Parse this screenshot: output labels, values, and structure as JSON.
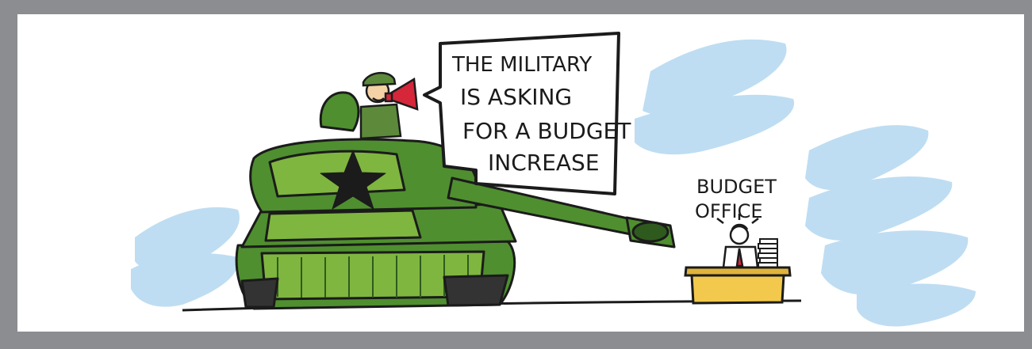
{
  "cartoon": {
    "speech_bubble": {
      "lines": [
        "THE MILITARY",
        "IS ASKING",
        "FOR A BUDGET",
        "INCREASE"
      ]
    },
    "office_sign": {
      "lines": [
        "BUDGET",
        "OFFICE"
      ]
    }
  },
  "colors": {
    "frame": "#8c8d90",
    "tank_green": "#4f8f2f",
    "tank_light": "#7fb63f",
    "tank_dark": "#2f5a1e",
    "megaphone": "#d5263a",
    "desk": "#f2c94c",
    "sky_blue": "#a9d2ee"
  },
  "icons": [
    "tank-icon",
    "soldier-icon",
    "megaphone-icon",
    "star-icon",
    "desk-icon",
    "clerk-icon"
  ]
}
